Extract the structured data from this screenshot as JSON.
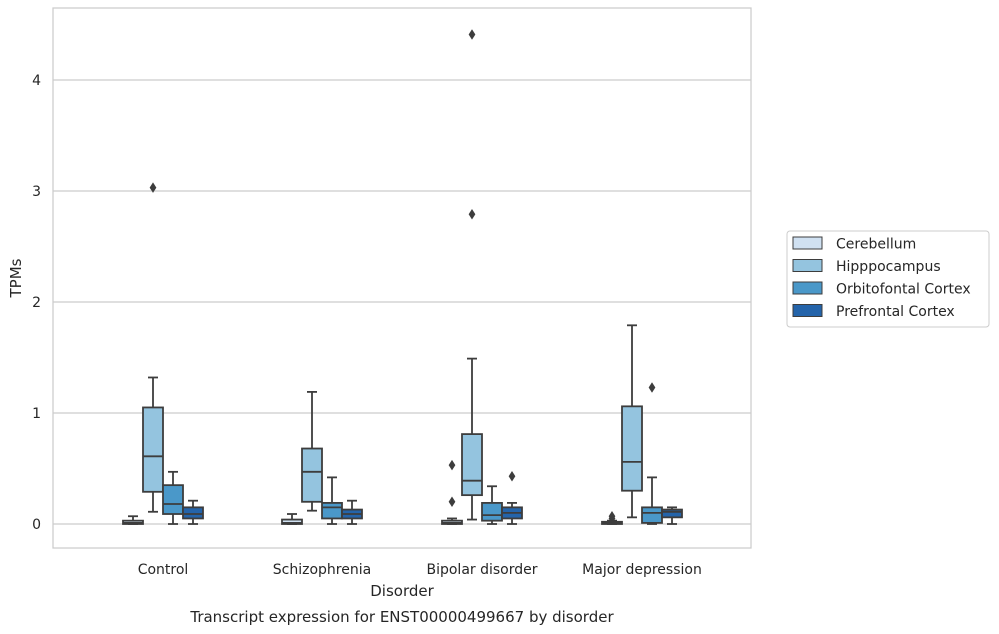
{
  "caption": "Transcript expression for ENST00000499667 by disorder",
  "chart_data": {
    "type": "box",
    "xlabel": "Disorder",
    "ylabel": "TPMs",
    "ylim": [
      -0.22,
      4.65
    ],
    "yticks": [
      0,
      1,
      2,
      3,
      4
    ],
    "grid": "horizontal",
    "legend_position": "right",
    "categories": [
      "Control",
      "Schizophrenia",
      "Bipolar disorder",
      "Major depression"
    ],
    "series": [
      {
        "name": "Cerebellum",
        "color": "#d0e1f2",
        "boxes": [
          {
            "whisker_low": 0.0,
            "q1": 0.0,
            "median": 0.01,
            "q3": 0.03,
            "whisker_high": 0.07,
            "outliers": []
          },
          {
            "whisker_low": 0.0,
            "q1": 0.0,
            "median": 0.01,
            "q3": 0.04,
            "whisker_high": 0.09,
            "outliers": []
          },
          {
            "whisker_low": 0.0,
            "q1": 0.0,
            "median": 0.01,
            "q3": 0.03,
            "whisker_high": 0.05,
            "outliers": [
              0.2,
              0.53
            ]
          },
          {
            "whisker_low": 0.0,
            "q1": 0.0,
            "median": 0.005,
            "q3": 0.02,
            "whisker_high": 0.03,
            "outliers": [
              0.05,
              0.07
            ]
          }
        ]
      },
      {
        "name": "Hipppocampus",
        "color": "#94c4df",
        "boxes": [
          {
            "whisker_low": 0.11,
            "q1": 0.29,
            "median": 0.61,
            "q3": 1.05,
            "whisker_high": 1.32,
            "outliers": [
              3.03
            ]
          },
          {
            "whisker_low": 0.12,
            "q1": 0.2,
            "median": 0.47,
            "q3": 0.68,
            "whisker_high": 1.19,
            "outliers": []
          },
          {
            "whisker_low": 0.04,
            "q1": 0.26,
            "median": 0.39,
            "q3": 0.81,
            "whisker_high": 1.49,
            "outliers": [
              2.79,
              4.41
            ]
          },
          {
            "whisker_low": 0.06,
            "q1": 0.3,
            "median": 0.56,
            "q3": 1.06,
            "whisker_high": 1.79,
            "outliers": []
          }
        ]
      },
      {
        "name": "Orbitofontal Cortex",
        "color": "#4a98c9",
        "boxes": [
          {
            "whisker_low": 0.0,
            "q1": 0.09,
            "median": 0.18,
            "q3": 0.35,
            "whisker_high": 0.47,
            "outliers": []
          },
          {
            "whisker_low": 0.0,
            "q1": 0.05,
            "median": 0.15,
            "q3": 0.19,
            "whisker_high": 0.42,
            "outliers": []
          },
          {
            "whisker_low": 0.0,
            "q1": 0.03,
            "median": 0.08,
            "q3": 0.19,
            "whisker_high": 0.34,
            "outliers": []
          },
          {
            "whisker_low": 0.0,
            "q1": 0.01,
            "median": 0.1,
            "q3": 0.15,
            "whisker_high": 0.42,
            "outliers": [
              1.23
            ]
          }
        ]
      },
      {
        "name": "Prefrontal Cortex",
        "color": "#2464aa",
        "boxes": [
          {
            "whisker_low": 0.0,
            "q1": 0.05,
            "median": 0.09,
            "q3": 0.15,
            "whisker_high": 0.21,
            "outliers": []
          },
          {
            "whisker_low": 0.0,
            "q1": 0.05,
            "median": 0.09,
            "q3": 0.13,
            "whisker_high": 0.21,
            "outliers": []
          },
          {
            "whisker_low": 0.0,
            "q1": 0.05,
            "median": 0.1,
            "q3": 0.15,
            "whisker_high": 0.19,
            "outliers": [
              0.43
            ]
          },
          {
            "whisker_low": 0.0,
            "q1": 0.06,
            "median": 0.11,
            "q3": 0.13,
            "whisker_high": 0.15,
            "outliers": []
          }
        ]
      }
    ]
  }
}
